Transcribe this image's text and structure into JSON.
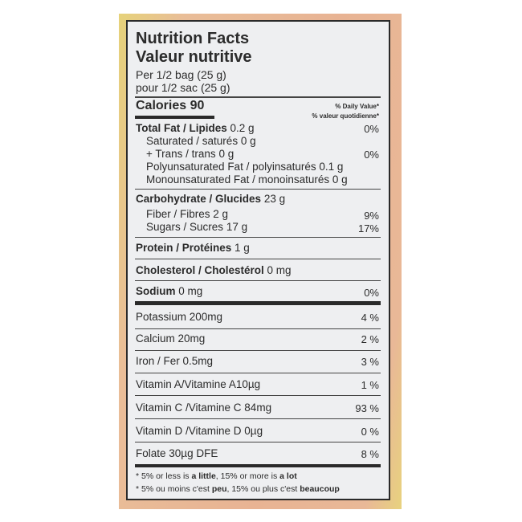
{
  "title_en": "Nutrition Facts",
  "title_fr": "Valeur nutritive",
  "serving_en": "Per 1/2 bag (25 g)",
  "serving_fr": "pour 1/2 sac (25 g)",
  "calories": {
    "label": "Calories 90",
    "dv_en": "% Daily Value*",
    "dv_fr": "% valeur quotidienne*"
  },
  "rows": [
    {
      "label": "Total Fat / Lipides",
      "amount": "0.2 g",
      "dv": "0%"
    },
    {
      "label": "Saturated / saturés",
      "amount": "0 g"
    },
    {
      "label": "+ Trans / trans",
      "amount": "0 g",
      "dv": "0%"
    },
    {
      "label": "Polyunsaturated Fat / polyinsaturés",
      "amount": "0.1 g"
    },
    {
      "label": "Monounsaturated Fat / monoinsaturés",
      "amount": "0 g"
    },
    {
      "label": "Carbohydrate / Glucides",
      "amount": "23 g"
    },
    {
      "label": "Fiber / Fibres",
      "amount": "2 g",
      "dv": "9%"
    },
    {
      "label": "Sugars / Sucres",
      "amount": "17 g",
      "dv": "17%"
    },
    {
      "label": "Protein / Protéines",
      "amount": "1 g"
    },
    {
      "label": "Cholesterol / Cholestérol",
      "amount": "0 mg"
    },
    {
      "label": "Sodium",
      "amount": "0 mg",
      "dv": "0%"
    },
    {
      "label": "Potassium 200mg",
      "dv": "4 %"
    },
    {
      "label": "Calcium 20mg",
      "dv": "2 %"
    },
    {
      "label": "Iron / Fer 0.5mg",
      "dv": "3 %"
    },
    {
      "label": "Vitamin A/Vitamine A10µg",
      "dv": "1 %"
    },
    {
      "label": "Vitamin C /Vitamine C 84mg",
      "dv": "93 %"
    },
    {
      "label": "Vitamin D /Vitamine D 0µg",
      "dv": "0 %"
    },
    {
      "label": "Folate 30µg DFE",
      "dv": "8 %"
    }
  ],
  "footnote_en": {
    "a": "* 5% or less is ",
    "b": "a little",
    "c": ", 15% or more is ",
    "d": "a lot"
  },
  "footnote_fr": {
    "a": "* 5% ou moins c'est ",
    "b": "peu",
    "c": ", 15% ou plus c'est ",
    "d": "beaucoup"
  },
  "colors": {
    "package": "#e8b393",
    "label": "#eeeff1",
    "ink": "#2b2b2b"
  }
}
